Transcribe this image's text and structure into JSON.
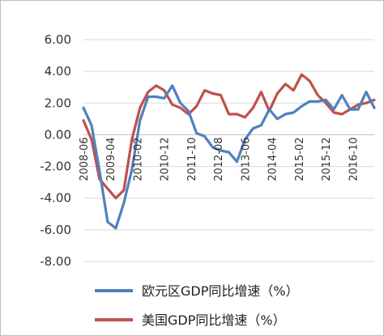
{
  "chart_data": {
    "type": "line",
    "title": "",
    "xlabel": "",
    "ylabel": "",
    "ylim": [
      -8,
      6
    ],
    "yticks": [
      "6.00",
      "4.00",
      "2.00",
      "0.00",
      "-2.00",
      "-4.00",
      "-6.00",
      "-8.00"
    ],
    "ytick_values": [
      6,
      4,
      2,
      0,
      -2,
      -4,
      -6,
      -8
    ],
    "grid": true,
    "legend_position": "bottom",
    "x": [
      "2008-06",
      "2008-09",
      "2008-12",
      "2009-03",
      "2009-06",
      "2009-09",
      "2009-12",
      "2010-03",
      "2010-06",
      "2010-09",
      "2010-12",
      "2011-03",
      "2011-06",
      "2011-09",
      "2011-12",
      "2012-03",
      "2012-06",
      "2012-09",
      "2012-12",
      "2013-03",
      "2013-06",
      "2013-09",
      "2013-12",
      "2014-03",
      "2014-06",
      "2014-09",
      "2014-12",
      "2015-03",
      "2015-06",
      "2015-09",
      "2015-12",
      "2016-03",
      "2016-06",
      "2016-09",
      "2016-12",
      "2017-03",
      "2017-06"
    ],
    "xtick_labels": [
      "2008-06",
      "2009-04",
      "2010-02",
      "2010-12",
      "2011-10",
      "2012-08",
      "2013-06",
      "2014-04",
      "2015-02",
      "2015-12",
      "2016-10"
    ],
    "xtick_index": [
      0,
      3.33,
      6.67,
      10,
      13.33,
      16.67,
      20,
      23.33,
      26.67,
      30,
      33.33
    ],
    "series": [
      {
        "name": "欧元区GDP同比增速（%）",
        "color": "#4f81bd",
        "values": [
          1.7,
          0.6,
          -2.3,
          -5.5,
          -5.9,
          -4.3,
          -2.2,
          0.9,
          2.4,
          2.4,
          2.3,
          3.1,
          2.0,
          1.5,
          0.1,
          -0.1,
          -0.8,
          -1.0,
          -1.1,
          -1.7,
          -0.3,
          0.4,
          0.6,
          1.6,
          1.0,
          1.3,
          1.4,
          1.8,
          2.1,
          2.1,
          2.2,
          1.6,
          2.5,
          1.6,
          1.6,
          2.7,
          1.7
        ]
      },
      {
        "name": "美国GDP同比增速（%）",
        "color": "#c0504d",
        "values": [
          0.9,
          -0.3,
          -2.8,
          -3.4,
          -4.0,
          -3.5,
          -0.3,
          1.7,
          2.7,
          3.1,
          2.8,
          1.9,
          1.7,
          1.3,
          1.8,
          2.8,
          2.6,
          2.5,
          1.3,
          1.3,
          1.1,
          1.7,
          2.7,
          1.5,
          2.6,
          3.2,
          2.8,
          3.8,
          3.4,
          2.5,
          2.0,
          1.4,
          1.3,
          1.6,
          1.9,
          2.0,
          2.2
        ]
      }
    ]
  }
}
